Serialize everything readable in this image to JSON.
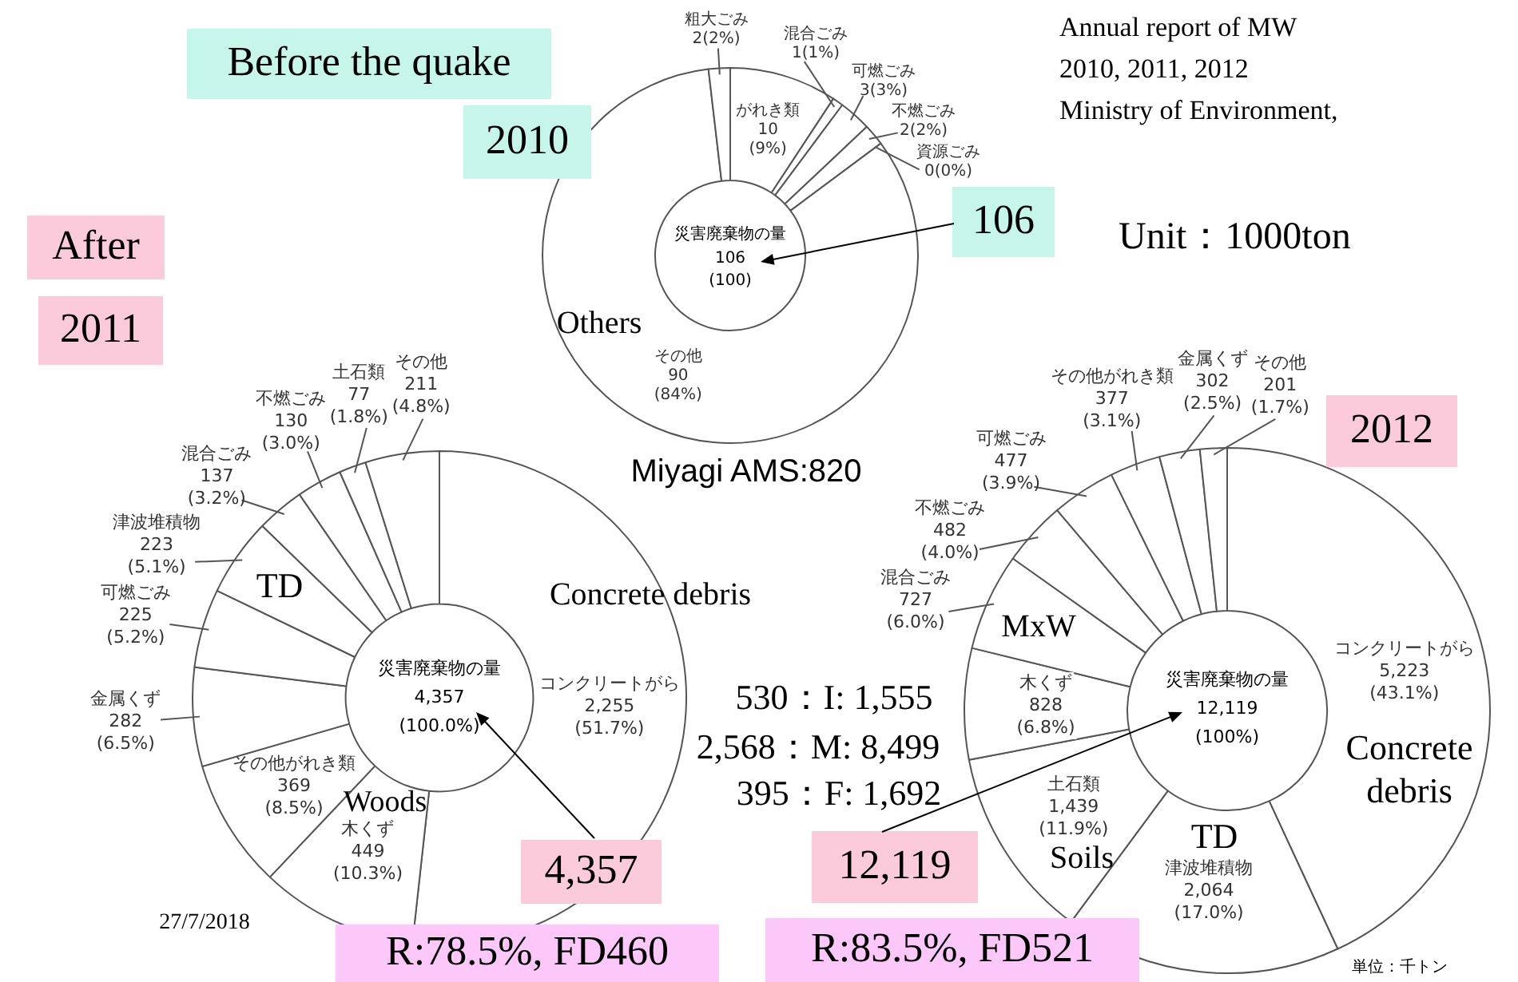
{
  "chart_data": [
    {
      "type": "donut",
      "categories": [
        "がれき類",
        "混合ごみ",
        "可燃ごみ",
        "不燃ごみ",
        "資源ごみ",
        "その他",
        "粗大ごみ"
      ],
      "values": [
        10,
        1,
        3,
        2,
        0,
        90,
        2
      ],
      "colors": [
        "#ffffff",
        "#ffffff",
        "#ffffff",
        "#ffffff",
        "#ffffff",
        "#ffffff",
        "#ffffff"
      ],
      "value_labels": [
        "10 (9%)",
        "1(1%)",
        "3(3%)",
        "2(2%)",
        "0(0%)",
        "90 (84%)",
        "2(2%)"
      ],
      "annotations": [
        "Before the quake",
        "2010",
        "106",
        "Others",
        "災害廃棄物の量",
        "106",
        "(100)",
        "Annual report of MW",
        "2010, 2011, 2012",
        "Ministry of Environment,",
        "Unit：1000ton"
      ]
    },
    {
      "type": "donut",
      "categories": [
        "コンクリートがら",
        "木くず",
        "その他がれき類",
        "金属くず",
        "可燃ごみ",
        "津波堆積物",
        "混合ごみ",
        "不燃ごみ",
        "土石類",
        "その他"
      ],
      "values": [
        2255,
        449,
        369,
        282,
        225,
        223,
        137,
        130,
        77,
        211
      ],
      "colors": [
        "#ffffff",
        "#ffffff",
        "#ffffff",
        "#ffffff",
        "#ffffff",
        "#ffffff",
        "#ffffff",
        "#ffffff",
        "#ffffff",
        "#ffffff"
      ],
      "value_labels": [
        "2,255 (51.7%)",
        "449 (10.3%)",
        "369 (8.5%)",
        "282 (6.5%)",
        "225 (5.2%)",
        "223 (5.1%)",
        "137 (3.2%)",
        "130 (3.0%)",
        "77 (1.8%)",
        "211 (4.8%)"
      ],
      "annotations": [
        "After",
        "2011",
        "TD",
        "Concrete debris",
        "Woods",
        "Miyagi AMS:820",
        "530：I: 1,555",
        "2,568：M: 8,499",
        "395：F: 1,692",
        "災害廃棄物の量",
        "4,357",
        "(100.0%)",
        "4,357",
        "R:78.5%, FD460",
        "27/7/2018"
      ]
    },
    {
      "type": "donut",
      "categories": [
        "コンクリートがら",
        "津波堆積物",
        "土石類",
        "木くず",
        "混合ごみ",
        "不燃ごみ",
        "可燃ごみ",
        "その他がれき類",
        "金属くず",
        "その他"
      ],
      "values": [
        5223,
        2064,
        1439,
        828,
        727,
        482,
        477,
        377,
        302,
        201
      ],
      "colors": [
        "#ffffff",
        "#ffffff",
        "#ffffff",
        "#ffffff",
        "#ffffff",
        "#ffffff",
        "#ffffff",
        "#ffffff",
        "#ffffff",
        "#ffffff"
      ],
      "value_labels": [
        "5,223 (43.1%)",
        "2,064 (17.0%)",
        "1,439 (11.9%)",
        "828 (6.8%)",
        "727 (6.0%)",
        "482 (4.0%)",
        "477 (3.9%)",
        "377 (3.1%)",
        "302 (2.5%)",
        "201 (1.7%)"
      ],
      "annotations": [
        "2012",
        "MxW",
        "Concrete debris",
        "TD",
        "Soils",
        "災害廃棄物の量",
        "12,119",
        "(100%)",
        "12,119",
        "R:83.5%, FD521",
        "単位：千トン"
      ]
    }
  ]
}
